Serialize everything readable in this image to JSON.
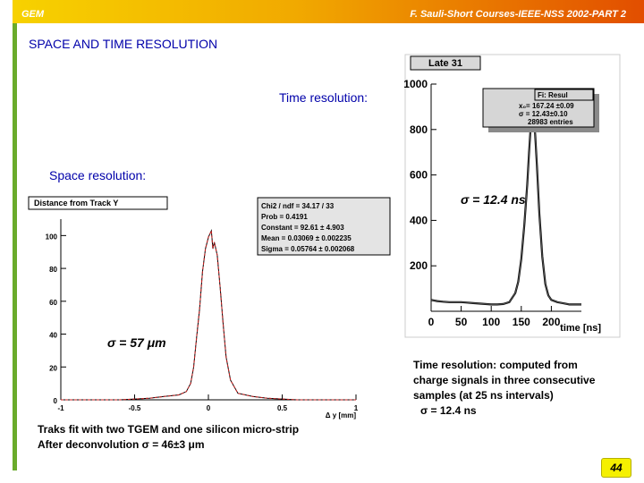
{
  "header": {
    "left": "GEM",
    "right": "F. Sauli-Short Courses-IEEE-NSS 2002-PART 2"
  },
  "title": "SPACE AND TIME RESOLUTION",
  "labels": {
    "time_resolution": "Time resolution:",
    "space_resolution": "Space resolution:",
    "sigma_time": "σ = 12.4 ns",
    "sigma_space": "σ = 57 μm"
  },
  "notes": {
    "time": [
      "Time resolution: computed from",
      "charge signals in three consecutive",
      "samples (at 25 ns intervals)",
      "σ = 12.4 ns"
    ],
    "space": [
      "Traks fit with two TGEM and one silicon micro-strip",
      "After deconvolution  σ = 46±3 μm"
    ]
  },
  "page_number": "44",
  "colors": {
    "header_from": "#f7d200",
    "header_to": "#e24e00",
    "left_bar": "#6aab2b",
    "accent": "#0000aa",
    "page_badge": "#f5f000"
  },
  "chart_data": [
    {
      "type": "line",
      "title": "Late 31",
      "xlabel": "time [ns]",
      "ylabel": "",
      "xlim": [
        0,
        250
      ],
      "ylim": [
        0,
        1000
      ],
      "x_ticks": [
        0,
        50,
        100,
        150,
        200
      ],
      "y_ticks": [
        200,
        400,
        600,
        800,
        1000
      ],
      "stats_box": {
        "title": "Fi: Resul",
        "lines": [
          "x₀= 167.24 ±0.09",
          "σ = 12.43±0.10",
          "28983 entries"
        ]
      },
      "series": [
        {
          "x": [
            0,
            10,
            20,
            30,
            40,
            50,
            60,
            70,
            80,
            90,
            100,
            110,
            120,
            130,
            140,
            145,
            150,
            155,
            160,
            163,
            166,
            168,
            170,
            173,
            176,
            180,
            185,
            190,
            195,
            200,
            210,
            220,
            230,
            250
          ],
          "values": [
            50,
            45,
            42,
            40,
            40,
            40,
            38,
            36,
            34,
            32,
            30,
            30,
            32,
            40,
            80,
            130,
            230,
            380,
            560,
            700,
            830,
            920,
            880,
            780,
            640,
            430,
            240,
            120,
            70,
            50,
            40,
            35,
            30,
            30
          ]
        }
      ]
    },
    {
      "type": "line",
      "title": "Distance from Track Y",
      "xlabel": "Δ y [mm]",
      "ylabel": "",
      "xlim": [
        -1,
        1
      ],
      "ylim": [
        0,
        110
      ],
      "x_ticks": [
        -1,
        -0.5,
        0,
        0.5,
        1
      ],
      "y_ticks": [
        0,
        20,
        40,
        60,
        80,
        100
      ],
      "stats_box": {
        "lines": [
          "Chi2 / ndf = 34.17 / 33",
          "Prob = 0.4191",
          "Constant = 92.61 ± 4.903",
          "Mean = 0.03069 ± 0.002235",
          "Sigma = 0.05764 ± 0.002068"
        ]
      },
      "series": [
        {
          "x": [
            -1,
            -0.8,
            -0.6,
            -0.4,
            -0.3,
            -0.2,
            -0.15,
            -0.12,
            -0.1,
            -0.08,
            -0.06,
            -0.04,
            -0.02,
            0,
            0.02,
            0.03,
            0.04,
            0.06,
            0.08,
            0.1,
            0.12,
            0.15,
            0.2,
            0.3,
            0.4,
            0.6,
            0.8,
            1
          ],
          "values": [
            0,
            0,
            0,
            1,
            2,
            3,
            5,
            10,
            20,
            38,
            55,
            78,
            92,
            99,
            103,
            92,
            96,
            88,
            68,
            46,
            26,
            12,
            4,
            2,
            1,
            0,
            0,
            0
          ]
        }
      ]
    }
  ]
}
